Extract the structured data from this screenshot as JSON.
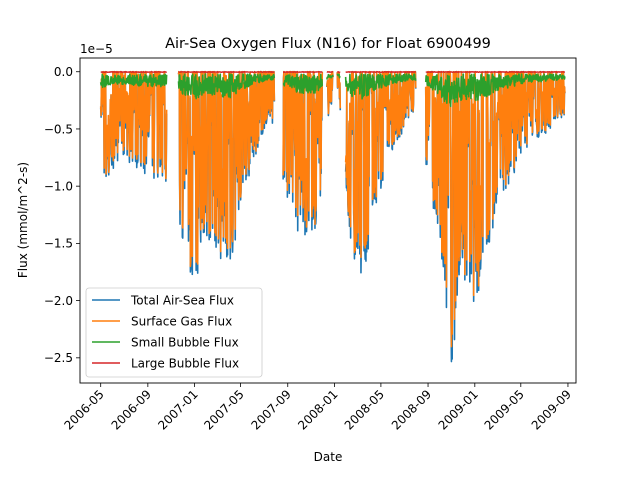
{
  "chart_data": {
    "type": "line",
    "title": "Air-Sea Oxygen Flux (N16) for Float 6900499",
    "xlabel": "Date",
    "ylabel": "Flux (mmol/m^2-s)",
    "y_scale_label": "1e−5",
    "y_unit_multiplier": 1e-05,
    "xlim": [
      "2006-03-08",
      "2009-09-22"
    ],
    "ylim": [
      -2.72e-05,
      1.2e-06
    ],
    "x_ticks": [
      {
        "date": "2006-05-01",
        "label": "2006-05"
      },
      {
        "date": "2006-09-01",
        "label": "2006-09"
      },
      {
        "date": "2007-01-01",
        "label": "2007-01"
      },
      {
        "date": "2007-05-01",
        "label": "2007-05"
      },
      {
        "date": "2007-09-01",
        "label": "2007-09"
      },
      {
        "date": "2008-01-01",
        "label": "2008-01"
      },
      {
        "date": "2008-05-01",
        "label": "2008-05"
      },
      {
        "date": "2008-09-01",
        "label": "2008-09"
      },
      {
        "date": "2009-01-01",
        "label": "2009-01"
      },
      {
        "date": "2009-05-01",
        "label": "2009-05"
      },
      {
        "date": "2009-09-01",
        "label": "2009-09"
      }
    ],
    "y_ticks": [
      {
        "value": 0.0,
        "label": "0.0"
      },
      {
        "value": -5e-06,
        "label": "−0.5"
      },
      {
        "value": -1e-05,
        "label": "−1.0"
      },
      {
        "value": -1.5e-05,
        "label": "−1.5"
      },
      {
        "value": -2e-05,
        "label": "−2.0"
      },
      {
        "value": -2.5e-05,
        "label": "−2.5"
      }
    ],
    "grid": false,
    "legend_position": "lower-left",
    "series": [
      {
        "name": "Total Air-Sea Flux",
        "color": "#1f77b4"
      },
      {
        "name": "Surface Gas Flux",
        "color": "#ff7f0e"
      },
      {
        "name": "Small Bubble Flux",
        "color": "#2ca02c"
      },
      {
        "name": "Large Bubble Flux",
        "color": "#d62728"
      }
    ],
    "segments": [
      {
        "start": "2006-05-01",
        "end": "2006-10-20"
      },
      {
        "start": "2006-11-20",
        "end": "2007-07-28"
      },
      {
        "start": "2007-08-20",
        "end": "2007-11-30"
      },
      {
        "start": "2007-12-12",
        "end": "2007-12-28"
      },
      {
        "start": "2008-01-08",
        "end": "2008-01-16"
      },
      {
        "start": "2008-01-30",
        "end": "2008-07-31"
      },
      {
        "start": "2008-08-26",
        "end": "2009-08-24"
      }
    ],
    "total_flux_envelope": [
      {
        "date": "2006-05-01",
        "min": -1e-05
      },
      {
        "date": "2006-07-01",
        "min": -7.5e-06
      },
      {
        "date": "2006-09-01",
        "min": -9.5e-06
      },
      {
        "date": "2006-10-15",
        "min": -9.2e-06
      },
      {
        "date": "2006-12-01",
        "min": -1.5e-05
      },
      {
        "date": "2007-01-01",
        "min": -1.9e-05
      },
      {
        "date": "2007-02-01",
        "min": -1.45e-05
      },
      {
        "date": "2007-03-01",
        "min": -1.6e-05
      },
      {
        "date": "2007-04-01",
        "min": -1.78e-05
      },
      {
        "date": "2007-05-01",
        "min": -1.2e-05
      },
      {
        "date": "2007-06-01",
        "min": -8e-06
      },
      {
        "date": "2007-07-15",
        "min": -4e-06
      },
      {
        "date": "2007-09-01",
        "min": -1.15e-05
      },
      {
        "date": "2007-10-01",
        "min": -1.45e-05
      },
      {
        "date": "2007-11-15",
        "min": -1.4e-05
      },
      {
        "date": "2007-12-20",
        "min": -3e-06
      },
      {
        "date": "2008-01-12",
        "min": -2e-06
      },
      {
        "date": "2008-02-15",
        "min": -1.65e-05
      },
      {
        "date": "2008-03-15",
        "min": -1.85e-05
      },
      {
        "date": "2008-04-15",
        "min": -1.2e-05
      },
      {
        "date": "2008-06-01",
        "min": -7e-06
      },
      {
        "date": "2008-07-20",
        "min": -4e-06
      },
      {
        "date": "2008-09-01",
        "min": -9e-06
      },
      {
        "date": "2008-10-01",
        "min": -1.55e-05
      },
      {
        "date": "2008-11-01",
        "min": -2.6e-05
      },
      {
        "date": "2008-12-01",
        "min": -1.8e-05
      },
      {
        "date": "2009-01-01",
        "min": -2.05e-05
      },
      {
        "date": "2009-02-01",
        "min": -1.65e-05
      },
      {
        "date": "2009-03-01",
        "min": -1.2e-05
      },
      {
        "date": "2009-04-01",
        "min": -1e-05
      },
      {
        "date": "2009-05-01",
        "min": -7.5e-06
      },
      {
        "date": "2009-06-01",
        "min": -6e-06
      },
      {
        "date": "2009-07-01",
        "min": -5.5e-06
      },
      {
        "date": "2009-08-20",
        "min": -4e-06
      }
    ]
  }
}
